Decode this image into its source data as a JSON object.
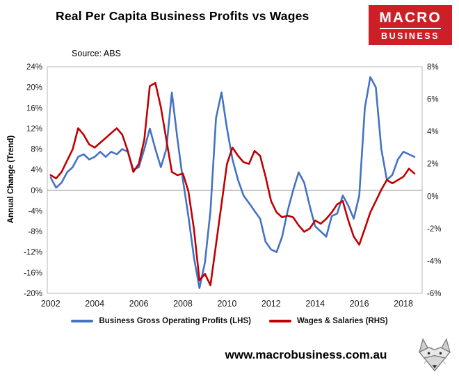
{
  "header": {
    "title": "Real Per Capita Business Profits vs Wages",
    "logo": {
      "line1": "MACRO",
      "line2": "BUSINESS",
      "background": "#cd2026"
    }
  },
  "chart": {
    "source_note": "Source: ABS",
    "y_left_title": "Annual Change (Trend)"
  },
  "chart_data": {
    "type": "line",
    "title": "Real Per Capita Business Profits vs Wages",
    "ylabel": "Annual Change (Trend)",
    "grid": "zero-line-only",
    "legend_position": "bottom",
    "x_axis": {
      "min": 2001.85,
      "max": 2018.85,
      "ticks": [
        2002,
        2004,
        2006,
        2008,
        2010,
        2012,
        2014,
        2016,
        2018
      ]
    },
    "y_left": {
      "min": -20,
      "max": 24,
      "unit": "%",
      "ticks": [
        24,
        20,
        16,
        12,
        8,
        4,
        0,
        -4,
        -8,
        -12,
        -16,
        -20
      ]
    },
    "y_right": {
      "min": -6,
      "max": 8,
      "unit": "%",
      "ticks": [
        8,
        6,
        4,
        2,
        0,
        -2,
        -4,
        -6
      ]
    },
    "x_start": 2002,
    "x_step": 0.25,
    "series": [
      {
        "name": "Business Gross Operating Profits (LHS)",
        "axis": "left",
        "color": "#4472c4",
        "values": [
          2.5,
          0.5,
          1.5,
          3.5,
          4.5,
          6.5,
          7,
          6,
          6.5,
          7.5,
          6.5,
          7.5,
          7,
          8,
          7.5,
          4,
          4.5,
          8,
          12,
          8,
          4.5,
          8,
          19,
          10,
          2,
          -5,
          -13,
          -19,
          -14,
          -4,
          14,
          19,
          12,
          6,
          2,
          -1,
          -2.5,
          -4,
          -5.5,
          -10,
          -11.5,
          -12,
          -9,
          -4,
          0,
          3.5,
          1.5,
          -3,
          -7,
          -8,
          -9,
          -5,
          -4.5,
          -1,
          -3,
          -5.5,
          -1,
          16,
          22,
          20,
          8,
          2,
          3,
          6,
          7.5,
          7,
          6.5
        ]
      },
      {
        "name": "Wages & Salaries (RHS)",
        "axis": "right",
        "color": "#c00000",
        "values": [
          1.3,
          1.1,
          1.5,
          2.2,
          2.9,
          4.2,
          3.8,
          3.2,
          3.0,
          3.3,
          3.6,
          3.9,
          4.2,
          3.8,
          2.8,
          1.5,
          2.0,
          3.5,
          6.8,
          7.0,
          5.5,
          3.5,
          1.5,
          1.3,
          1.4,
          0.3,
          -2.0,
          -5.2,
          -4.8,
          -5.5,
          -3.0,
          -0.5,
          2.0,
          3.0,
          2.5,
          2.1,
          2.0,
          2.8,
          2.5,
          1.2,
          -0.3,
          -1.0,
          -1.3,
          -1.2,
          -1.3,
          -1.8,
          -2.2,
          -2.0,
          -1.5,
          -1.7,
          -1.4,
          -1.0,
          -0.5,
          -0.3,
          -1.5,
          -2.5,
          -3.0,
          -2.0,
          -1.0,
          -0.3,
          0.4,
          1.0,
          0.8,
          1.0,
          1.2,
          1.7,
          1.4
        ]
      }
    ],
    "style": {
      "zero_line": "#8c8c8c",
      "plot_border": "#b7b7b7"
    }
  },
  "footer": {
    "url": "www.macrobusiness.com.au"
  }
}
